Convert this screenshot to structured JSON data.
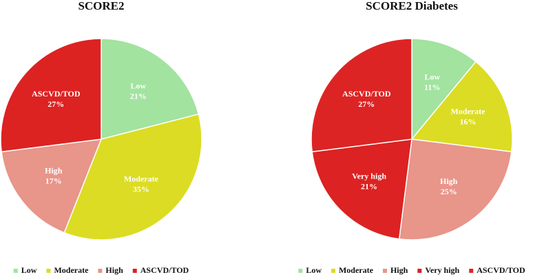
{
  "chart_data": [
    {
      "type": "pie",
      "title": "SCORE2",
      "categories": [
        "Low",
        "Moderate",
        "High",
        "ASCVD/TOD"
      ],
      "values": [
        21,
        35,
        17,
        27
      ],
      "value_labels": [
        "21%",
        "35%",
        "17%",
        "27%"
      ],
      "colors": [
        "#a2e3a0",
        "#dcdc24",
        "#e8958a",
        "#dd2222"
      ],
      "legend": "bottom"
    },
    {
      "type": "pie",
      "title": "SCORE2 Diabetes",
      "categories": [
        "Low",
        "Moderate",
        "High",
        "Very high",
        "ASCVD/TOD"
      ],
      "values": [
        11,
        16,
        25,
        21,
        27
      ],
      "value_labels": [
        "11%",
        "16%",
        "25%",
        "21%",
        "27%"
      ],
      "colors": [
        "#a2e3a0",
        "#dcdc24",
        "#e8958a",
        "#dc2222",
        "#dd2424"
      ],
      "legend": "bottom"
    }
  ]
}
